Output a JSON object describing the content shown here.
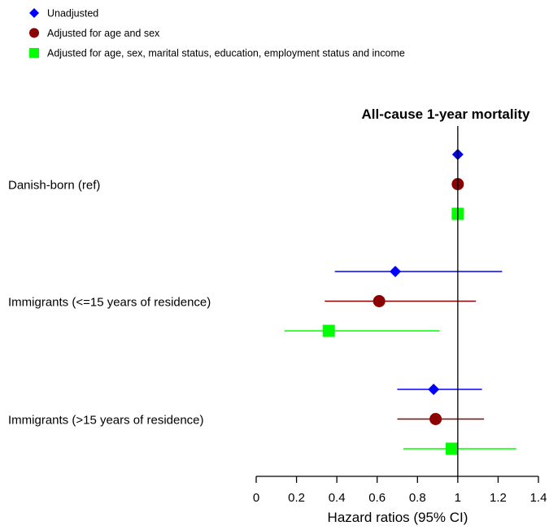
{
  "chart_data": {
    "type": "forest",
    "title": "All-cause 1-year mortality",
    "xlabel": "Hazard ratios (95% CI)",
    "xlim": [
      0,
      1.4
    ],
    "x_ticks": [
      0,
      0.2,
      0.4,
      0.6,
      0.8,
      1,
      1.2,
      1.4
    ],
    "x_tick_labels": [
      "0",
      "0.2",
      "0.4",
      "0.6",
      "0.8",
      "1",
      "1.2",
      "1.4"
    ],
    "reference_line": 1,
    "legend_position": "top-left",
    "series": [
      {
        "name": "Unadjusted",
        "marker": "diamond",
        "color": "#0000ff"
      },
      {
        "name": "Adjusted for age and sex",
        "marker": "circle",
        "color": "#8b0000"
      },
      {
        "name": "Adjusted for age, sex, marital status, education, employment status and income",
        "marker": "square",
        "color": "#00ff00"
      }
    ],
    "groups": [
      {
        "label": "Danish-born (ref)",
        "estimates": [
          {
            "series": 0,
            "hr": 1.0,
            "lower": null,
            "upper": null
          },
          {
            "series": 1,
            "hr": 1.0,
            "lower": null,
            "upper": null
          },
          {
            "series": 2,
            "hr": 1.0,
            "lower": null,
            "upper": null
          }
        ]
      },
      {
        "label": "Immigrants (<=15 years of residence)",
        "estimates": [
          {
            "series": 0,
            "hr": 0.69,
            "lower": 0.39,
            "upper": 1.22
          },
          {
            "series": 1,
            "hr": 0.61,
            "lower": 0.34,
            "upper": 1.09
          },
          {
            "series": 2,
            "hr": 0.36,
            "lower": 0.14,
            "upper": 0.91
          }
        ]
      },
      {
        "label": "Immigrants (>15 years of residence)",
        "estimates": [
          {
            "series": 0,
            "hr": 0.88,
            "lower": 0.7,
            "upper": 1.12
          },
          {
            "series": 1,
            "hr": 0.89,
            "lower": 0.7,
            "upper": 1.13
          },
          {
            "series": 2,
            "hr": 0.97,
            "lower": 0.73,
            "upper": 1.29
          }
        ]
      }
    ]
  }
}
